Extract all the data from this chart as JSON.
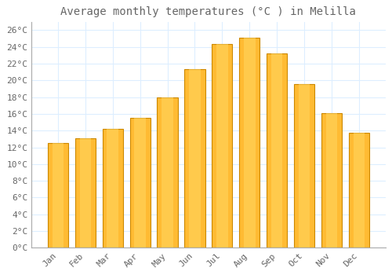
{
  "title": "Average monthly temperatures (°C ) in Melilla",
  "months": [
    "Jan",
    "Feb",
    "Mar",
    "Apr",
    "May",
    "Jun",
    "Jul",
    "Aug",
    "Sep",
    "Oct",
    "Nov",
    "Dec"
  ],
  "values": [
    12.5,
    13.1,
    14.2,
    15.5,
    18.0,
    21.3,
    24.3,
    25.1,
    23.2,
    19.6,
    16.1,
    13.7
  ],
  "bar_color_main": "#FFBB33",
  "bar_color_edge": "#CC8800",
  "background_color": "#FFFFFF",
  "grid_color": "#DDEEFF",
  "text_color": "#666666",
  "ylim": [
    0,
    27
  ],
  "ytick_max": 26,
  "ytick_interval": 2,
  "title_fontsize": 10,
  "tick_fontsize": 8,
  "font_family": "monospace"
}
